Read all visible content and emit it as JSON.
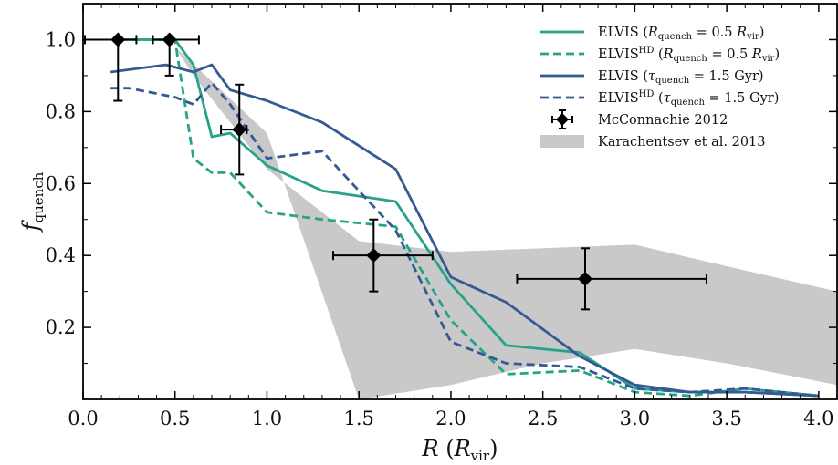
{
  "chart_data": {
    "type": "line",
    "title": "",
    "xlabel": "R (R_vir)",
    "ylabel": "f_quench",
    "xlim": [
      0.0,
      4.1
    ],
    "ylim": [
      0.0,
      1.1
    ],
    "x_ticks": [
      "0.0",
      "0.5",
      "1.0",
      "1.5",
      "2.0",
      "2.5",
      "3.0",
      "3.5",
      "4.0"
    ],
    "y_ticks": [
      "0.2",
      "0.4",
      "0.6",
      "0.8",
      "1.0"
    ],
    "grid": false,
    "legend_position": "top-right",
    "series": [
      {
        "name": "ELVIS (R_quench = 0.5 R_vir)",
        "style": "solid",
        "color": "#27a38a",
        "x": [
          0.2,
          0.5,
          0.6,
          0.7,
          0.8,
          1.0,
          1.3,
          1.7,
          2.0,
          2.3,
          2.7,
          3.0,
          3.3,
          3.6,
          4.0
        ],
        "y": [
          1.0,
          1.0,
          0.93,
          0.73,
          0.74,
          0.65,
          0.58,
          0.55,
          0.32,
          0.15,
          0.13,
          0.03,
          0.02,
          0.02,
          0.01
        ]
      },
      {
        "name": "ELVIS^HD (R_quench = 0.5 R_vir)",
        "style": "dashed",
        "color": "#27a38a",
        "x": [
          0.2,
          0.5,
          0.6,
          0.7,
          0.8,
          1.0,
          1.3,
          1.7,
          2.0,
          2.3,
          2.7,
          3.0,
          3.3,
          3.6,
          4.0
        ],
        "y": [
          1.0,
          1.0,
          0.67,
          0.63,
          0.63,
          0.52,
          0.5,
          0.48,
          0.22,
          0.07,
          0.08,
          0.02,
          0.01,
          0.03,
          0.01
        ]
      },
      {
        "name": "ELVIS (τ_quench = 1.5 Gyr)",
        "style": "solid",
        "color": "#355a93",
        "x": [
          0.15,
          0.45,
          0.6,
          0.7,
          0.8,
          1.0,
          1.3,
          1.7,
          2.0,
          2.3,
          2.7,
          3.0,
          3.3,
          3.6,
          4.0
        ],
        "y": [
          0.91,
          0.93,
          0.91,
          0.93,
          0.86,
          0.83,
          0.77,
          0.64,
          0.34,
          0.27,
          0.12,
          0.04,
          0.02,
          0.02,
          0.01
        ]
      },
      {
        "name": "ELVIS^HD (τ_quench = 1.5 Gyr)",
        "style": "dashed",
        "color": "#355a93",
        "x": [
          0.15,
          0.25,
          0.5,
          0.6,
          0.7,
          0.8,
          1.0,
          1.3,
          1.7,
          2.0,
          2.3,
          2.7,
          3.0,
          3.3,
          3.6,
          4.0
        ],
        "y": [
          0.865,
          0.865,
          0.84,
          0.82,
          0.88,
          0.82,
          0.67,
          0.69,
          0.47,
          0.16,
          0.1,
          0.09,
          0.03,
          0.02,
          0.03,
          0.01
        ]
      }
    ],
    "points": {
      "name": "McConnachie 2012",
      "color": "#000000",
      "data": [
        {
          "x": 0.19,
          "y": 1.0,
          "xerr": [
            0.18,
            0.1
          ],
          "yerr": [
            0.17,
            0.0
          ]
        },
        {
          "x": 0.47,
          "y": 1.0,
          "xerr": [
            0.09,
            0.16
          ],
          "yerr": [
            0.1,
            0.0
          ]
        },
        {
          "x": 0.85,
          "y": 0.75,
          "xerr": [
            0.1,
            0.04
          ],
          "yerr": [
            0.125,
            0.125
          ]
        },
        {
          "x": 1.58,
          "y": 0.4,
          "xerr": [
            0.22,
            0.32
          ],
          "yerr": [
            0.1,
            0.1
          ]
        },
        {
          "x": 2.73,
          "y": 0.335,
          "xerr": [
            0.37,
            0.66
          ],
          "yerr": [
            0.085,
            0.085
          ]
        }
      ]
    },
    "band": {
      "name": "Karachentsev et al. 2013",
      "color": "#c9c9c9",
      "upper": [
        [
          0.5,
          0.98
        ],
        [
          0.6,
          0.9
        ],
        [
          1.0,
          0.64
        ],
        [
          1.5,
          0.44
        ],
        [
          2.0,
          0.41
        ],
        [
          2.5,
          0.42
        ],
        [
          3.0,
          0.43
        ],
        [
          3.5,
          0.37
        ],
        [
          4.1,
          0.3
        ]
      ],
      "lower": [
        [
          0.5,
          0.98
        ],
        [
          1.0,
          0.74
        ],
        [
          1.5,
          0.0
        ],
        [
          2.0,
          0.04
        ],
        [
          2.5,
          0.1
        ],
        [
          3.0,
          0.14
        ],
        [
          3.5,
          0.1
        ],
        [
          4.1,
          0.04
        ]
      ]
    }
  },
  "legend": [
    {
      "kind": "line",
      "style": "solid",
      "color": "#27a38a",
      "text": "ELVIS (",
      "math_a": "R",
      "sub_a": "quench",
      "mid": " = 0.5 ",
      "math_b": "R",
      "sub_b": "vir",
      "tail": ")"
    },
    {
      "kind": "line",
      "style": "dashed",
      "color": "#27a38a",
      "text": "ELVIS",
      "sup": "HD",
      "text2": " (",
      "math_a": "R",
      "sub_a": "quench",
      "mid": " = 0.5 ",
      "math_b": "R",
      "sub_b": "vir",
      "tail": ")"
    },
    {
      "kind": "line",
      "style": "solid",
      "color": "#355a93",
      "text": "ELVIS (",
      "math_a": "τ",
      "sub_a": "quench",
      "mid": " = 1.5 Gyr)"
    },
    {
      "kind": "line",
      "style": "dashed",
      "color": "#355a93",
      "text": "ELVIS",
      "sup": "HD",
      "text2": " (",
      "math_a": "τ",
      "sub_a": "quench",
      "mid": " = 1.5 Gyr)"
    },
    {
      "kind": "marker",
      "color": "#000000",
      "text": "McConnachie 2012"
    },
    {
      "kind": "patch",
      "color": "#c9c9c9",
      "text": "Karachentsev et al. 2013"
    }
  ],
  "axis_text": {
    "x_main": "R",
    "x_paren_open": " (",
    "x_math": "R",
    "x_sub": "vir",
    "x_paren_close": ")",
    "y_main": "f",
    "y_sub": "quench"
  }
}
